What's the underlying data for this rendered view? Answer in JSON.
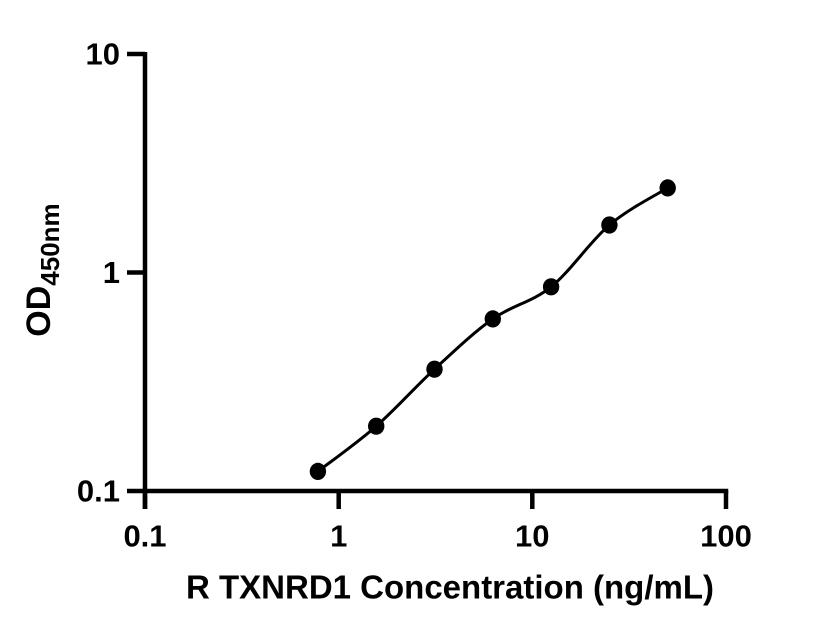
{
  "figure": {
    "background": "#ffffff",
    "axis_color": "#000000"
  },
  "chart_data": {
    "type": "scatter",
    "x": [
      0.781,
      1.563,
      3.125,
      6.25,
      12.5,
      25,
      50
    ],
    "y": [
      0.123,
      0.198,
      0.361,
      0.613,
      0.86,
      1.65,
      2.44
    ],
    "title": "",
    "xlabel": "R TXNRD1 Concentration (ng/mL)",
    "ylabel_main": "OD",
    "ylabel_sub": "450nm",
    "x_scale": "log10",
    "y_scale": "log10",
    "xlim": [
      0.1,
      100
    ],
    "ylim": [
      0.1,
      10
    ],
    "x_ticks": [
      0.1,
      1,
      10,
      100
    ],
    "x_tick_labels": [
      "0.1",
      "1",
      "10",
      "100"
    ],
    "y_ticks": [
      0.1,
      1,
      10
    ],
    "y_tick_labels": [
      "0.1",
      "1",
      "10"
    ],
    "grid": false,
    "legend": false,
    "marker_color": "#000000",
    "line_color": "#000000"
  }
}
